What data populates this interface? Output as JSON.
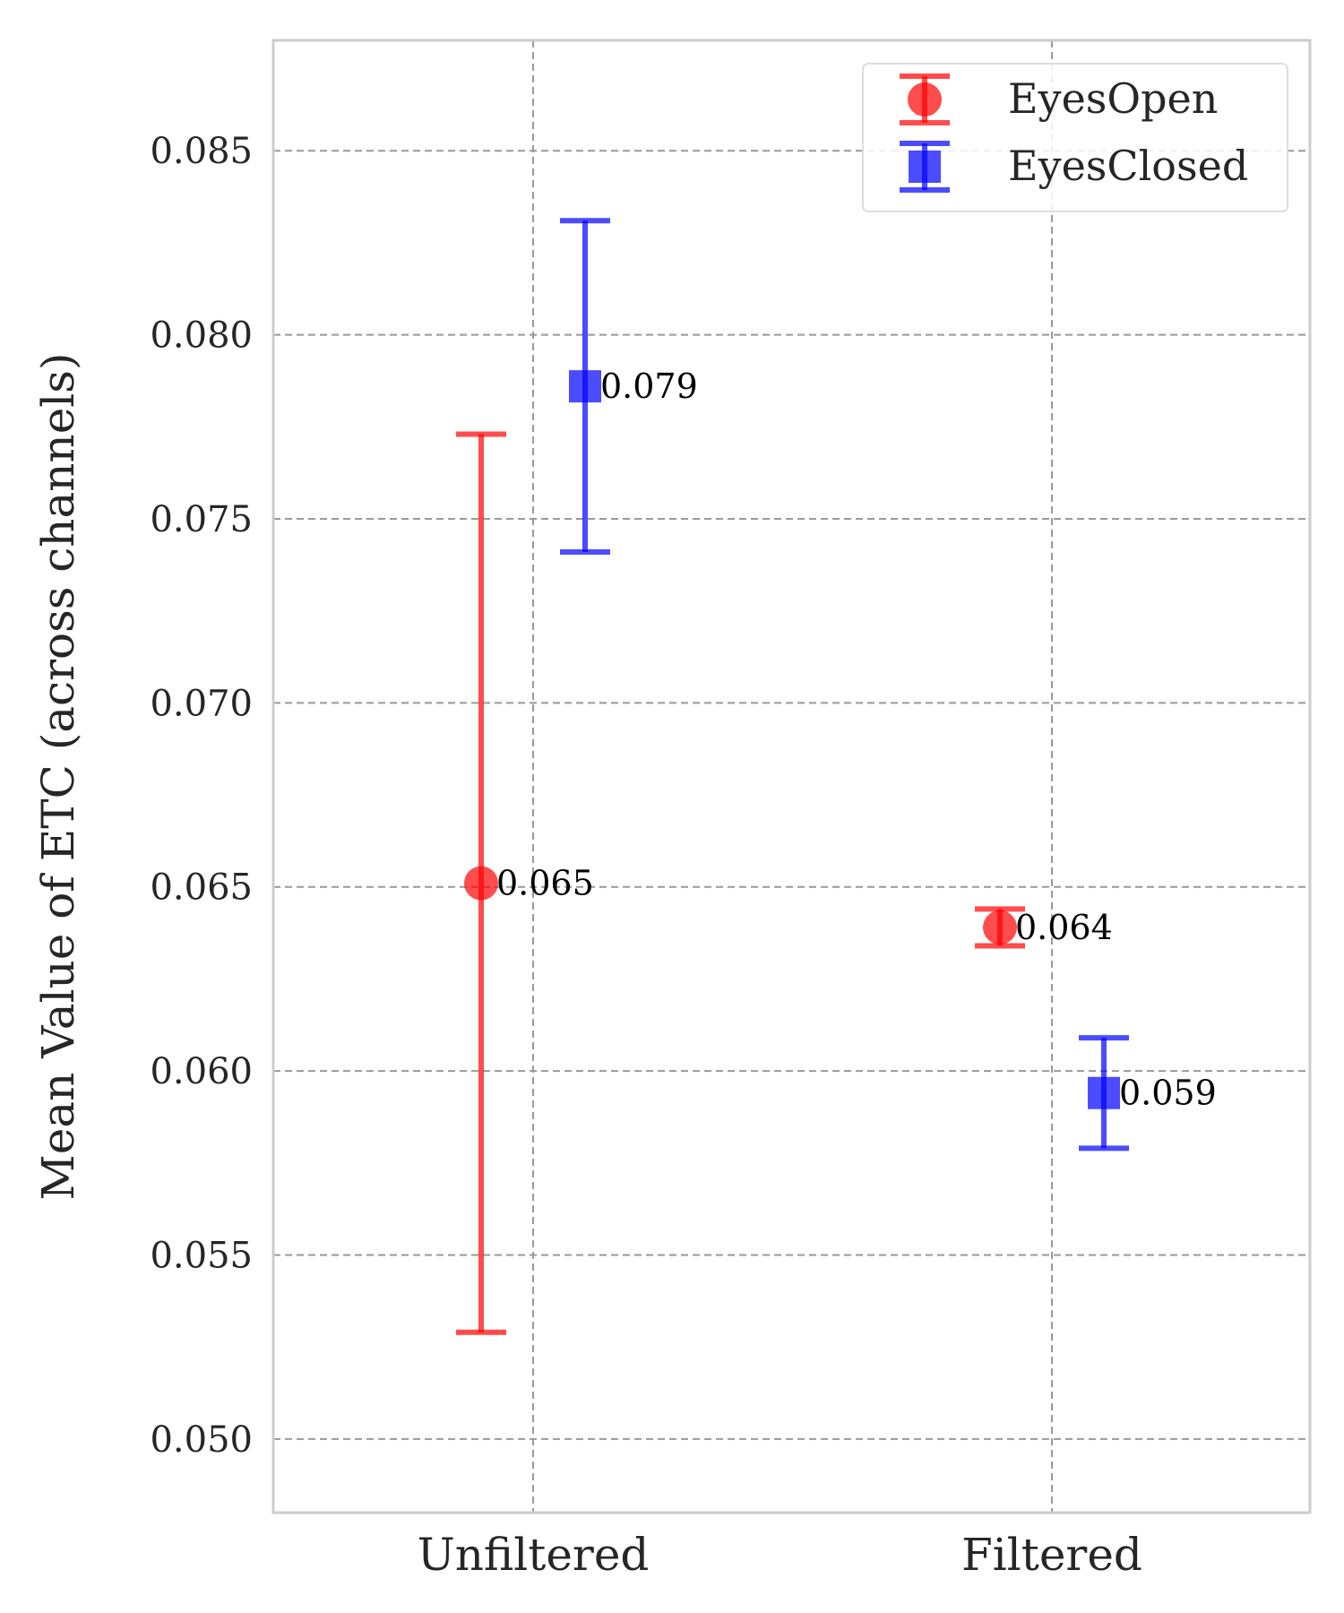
{
  "chart_data": {
    "type": "scatter",
    "categories": [
      "Unfiltered",
      "Filtered"
    ],
    "ylabel": "Mean Value of ETC (across channels)",
    "xlabel": "",
    "ylim": [
      0.048,
      0.088
    ],
    "yticks": [
      0.05,
      0.055,
      0.06,
      0.065,
      0.07,
      0.075,
      0.08,
      0.085
    ],
    "ytick_labels": [
      "0.050",
      "0.055",
      "0.060",
      "0.065",
      "0.070",
      "0.075",
      "0.080",
      "0.085"
    ],
    "grid": true,
    "legend_position": "top-right",
    "series": [
      {
        "name": "EyesOpen",
        "color": "#ff0000",
        "marker": "circle",
        "values": [
          0.0651,
          0.0639
        ],
        "errors": [
          0.0122,
          0.0005
        ],
        "labels": [
          "0.065",
          "0.064"
        ]
      },
      {
        "name": "EyesClosed",
        "color": "#0000ff",
        "marker": "square",
        "values": [
          0.0786,
          0.0594
        ],
        "errors": [
          0.0045,
          0.0015
        ],
        "labels": [
          "0.079",
          "0.059"
        ]
      }
    ]
  }
}
